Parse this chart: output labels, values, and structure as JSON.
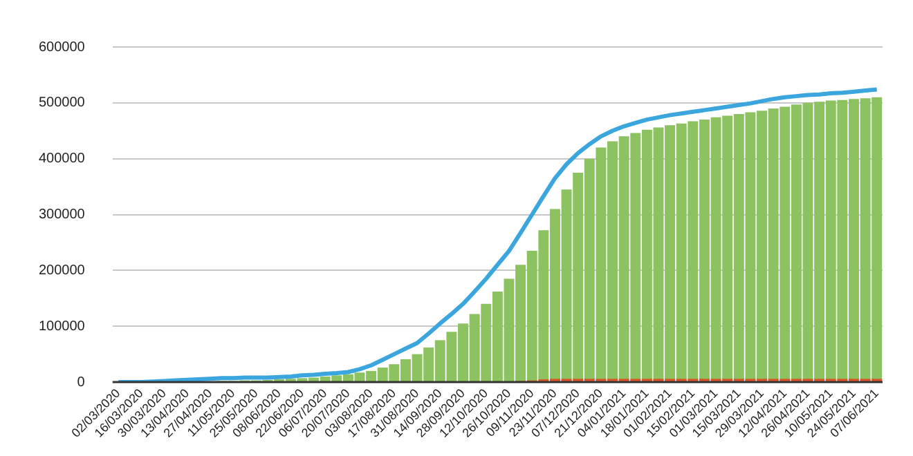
{
  "chart_data": {
    "type": "bar",
    "categories": [
      "02/03/2020",
      null,
      "16/03/2020",
      null,
      "30/03/2020",
      null,
      "13/04/2020",
      null,
      "27/04/2020",
      null,
      "11/05/2020",
      null,
      "25/05/2020",
      null,
      "08/06/2020",
      null,
      "22/06/2020",
      null,
      "06/07/2020",
      null,
      "20/07/2020",
      null,
      "03/08/2020",
      null,
      "17/08/2020",
      null,
      "31/08/2020",
      null,
      "14/09/2020",
      null,
      "28/09/2020",
      null,
      "12/10/2020",
      null,
      "26/10/2020",
      null,
      "09/11/2020",
      null,
      "23/11/2020",
      null,
      "07/12/2020",
      null,
      "21/12/2020",
      null,
      "04/01/2021",
      null,
      "18/01/2021",
      null,
      "01/02/2021",
      null,
      "15/02/2021",
      null,
      "01/03/2021",
      null,
      "15/03/2021",
      null,
      "29/03/2021",
      null,
      "12/04/2021",
      null,
      "26/04/2021",
      null,
      "10/05/2021",
      null,
      "24/05/2021",
      null,
      "07/06/2021"
    ],
    "series": [
      {
        "color": "#8cc260",
        "values": [
          0,
          0,
          0,
          0,
          0,
          0,
          0,
          1000,
          1000,
          2000,
          2000,
          3000,
          3000,
          4000,
          5000,
          6000,
          7000,
          8000,
          10000,
          12000,
          14000,
          17000,
          20000,
          26000,
          32000,
          41000,
          50000,
          62000,
          75000,
          90000,
          105000,
          122000,
          140000,
          162000,
          185000,
          210000,
          235000,
          272000,
          310000,
          345000,
          375000,
          400000,
          420000,
          431000,
          440000,
          446000,
          452000,
          456000,
          460000,
          463000,
          467000,
          470000,
          474000,
          477000,
          480000,
          483000,
          486000,
          490000,
          493000,
          497000,
          500000,
          502000,
          504000,
          505000,
          507000,
          508000,
          510000
        ]
      },
      {
        "color": "#d9552b",
        "values": [
          0,
          0,
          0,
          0,
          0,
          0,
          0,
          0,
          0,
          0,
          0,
          0,
          0,
          0,
          0,
          0,
          0,
          0,
          0,
          0,
          0,
          0,
          0,
          0,
          0,
          0,
          0,
          0,
          0,
          0,
          0,
          0,
          0,
          0,
          1000,
          2000,
          3000,
          5000,
          6000,
          6000,
          6000,
          6000,
          6000,
          6000,
          6000,
          6000,
          6000,
          6000,
          6000,
          6000,
          6000,
          6000,
          6000,
          6000,
          6000,
          6000,
          6000,
          6000,
          6000,
          6000,
          6000,
          6000,
          6000,
          6000,
          6000,
          6000,
          6000
        ]
      },
      {
        "type": "line",
        "color": "#3aa6dd",
        "values": [
          0,
          0,
          0,
          1000,
          2000,
          3000,
          4000,
          5000,
          6000,
          7000,
          7000,
          8000,
          8000,
          8000,
          9000,
          10000,
          12000,
          13000,
          15000,
          16000,
          18000,
          23000,
          30000,
          40000,
          50000,
          60000,
          70000,
          87000,
          105000,
          122000,
          140000,
          162000,
          185000,
          210000,
          235000,
          267000,
          300000,
          333000,
          365000,
          390000,
          410000,
          426000,
          440000,
          450000,
          458000,
          464000,
          470000,
          474000,
          478000,
          481000,
          484000,
          487000,
          490000,
          493000,
          496000,
          499000,
          503000,
          507000,
          510000,
          512000,
          514000,
          515000,
          517000,
          518000,
          520000,
          522000,
          524000
        ]
      }
    ],
    "ylim": [
      0,
      600000
    ],
    "yticks": [
      0,
      100000,
      200000,
      300000,
      400000,
      500000,
      600000
    ],
    "grid": "y",
    "legend": false,
    "marker": "none",
    "line_style": "solid"
  }
}
